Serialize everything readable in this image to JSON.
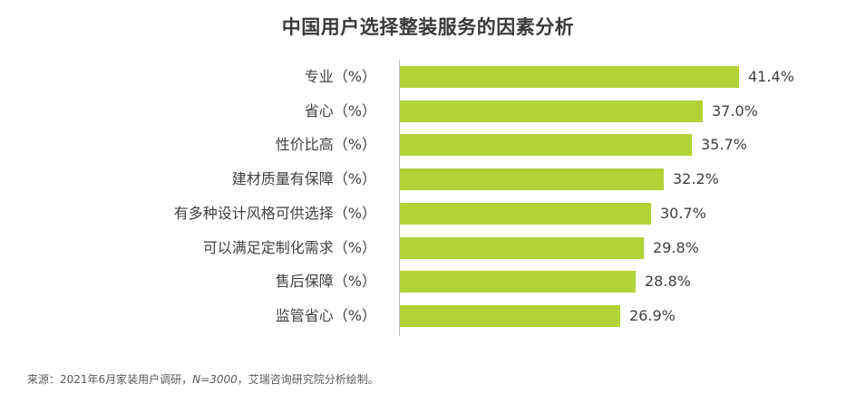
{
  "chart_data": {
    "type": "bar",
    "orientation": "horizontal",
    "title": "中国用户选择整装服务的因素分析",
    "xlabel": "",
    "ylabel": "",
    "categories": [
      "专业（%）",
      "省心（%）",
      "性价比高（%）",
      "建材质量有保障（%）",
      "有多种设计风格可供选择（%）",
      "可以满足定制化需求（%）",
      "售后保障（%）",
      "监管省心（%）"
    ],
    "values": [
      41.4,
      37.0,
      35.7,
      32.2,
      30.7,
      29.8,
      28.8,
      26.9
    ],
    "value_labels": [
      "41.4%",
      "37.0%",
      "35.7%",
      "32.2%",
      "30.7%",
      "29.8%",
      "28.8%",
      "26.9%"
    ],
    "bar_color": "#b2d235",
    "grid": false,
    "legend": null
  },
  "footer": {
    "source_prefix": "来源：2021年6月家装用户调研，",
    "source_n": "N=3000",
    "source_suffix": "，艾瑞咨询研究院分析绘制。"
  }
}
